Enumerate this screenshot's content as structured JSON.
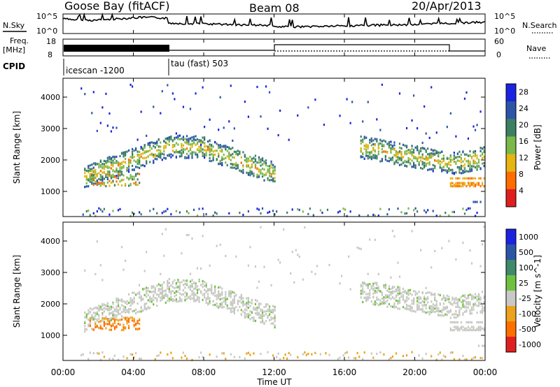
{
  "header": {
    "station": "Goose Bay (fitACF)",
    "beam": "Beam 08",
    "date": "20/Apr/2013"
  },
  "panels": {
    "nsky": {
      "left_label": "N.Sky",
      "right_label": "N.Search",
      "tick_top": "10^5",
      "tick_bottom": "10^0"
    },
    "freq": {
      "left_label": "Freq.",
      "left_unit": "[MHz]",
      "tick_top": "18",
      "tick_bottom": "8",
      "right_label": "Nave",
      "right_tick_top": "60",
      "right_tick_bottom": "0"
    },
    "cpid": {
      "left_label": "CPID",
      "seg1": "icescan -1200",
      "seg2": "tau (fast) 503"
    }
  },
  "chart_data": [
    {
      "type": "heatmap",
      "title": "",
      "ylabel": "Slant Range [km]",
      "xlabel": "Time UT",
      "x_ticks": [
        "00:00",
        "04:00",
        "08:00",
        "12:00",
        "16:00",
        "20:00",
        "00:00"
      ],
      "y_ticks": [
        1000,
        2000,
        3000,
        4000
      ],
      "colorbar_label": "Power [dB]",
      "colorbar_ticks": [
        "4",
        "8",
        "12",
        "16",
        "20",
        "24",
        "28"
      ],
      "colorbar_colors": [
        "#1a24e0",
        "#2c55a8",
        "#3d7f62",
        "#7ab84a",
        "#e6b413",
        "#ff6d00",
        "#e01e1e"
      ]
    },
    {
      "type": "heatmap",
      "title": "",
      "ylabel": "Slant Range [km]",
      "xlabel": "Time UT",
      "x_ticks": [
        "00:00",
        "04:00",
        "08:00",
        "12:00",
        "16:00",
        "20:00",
        "00:00"
      ],
      "y_ticks": [
        1000,
        2000,
        3000,
        4000
      ],
      "colorbar_label": "Velocity [m s^-1]",
      "colorbar_ticks": [
        "1000",
        "500",
        "100",
        "25",
        "-25",
        "-100",
        "-500",
        "-1000"
      ],
      "colorbar_colors": [
        "#1a24e0",
        "#2b56a6",
        "#3f8a6a",
        "#6fc23f",
        "#c8c8c4",
        "#eca21c",
        "#ff6f00",
        "#e02020"
      ]
    }
  ],
  "x_axis": {
    "label": "Time UT",
    "ticks": [
      "00:00",
      "04:00",
      "08:00",
      "12:00",
      "16:00",
      "20:00",
      "00:00"
    ]
  }
}
